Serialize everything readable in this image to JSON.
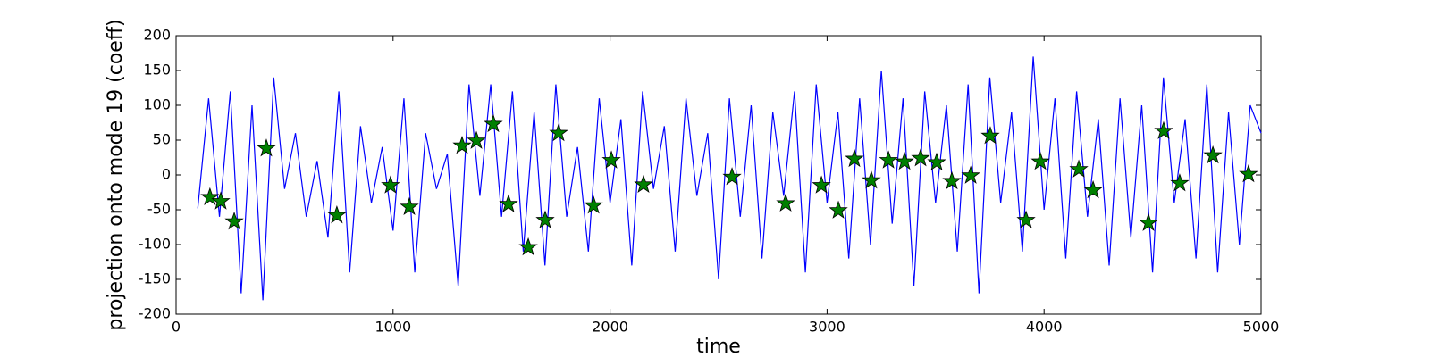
{
  "chart_data": {
    "type": "line",
    "x_label": "time",
    "y_label": "projection onto mode 19 (coeff)",
    "xlim": [
      0,
      5000
    ],
    "xticks": [
      0,
      1000,
      2000,
      3000,
      4000,
      5000
    ],
    "ylim": [
      -200,
      200
    ],
    "yticks": [
      -200,
      -150,
      -100,
      -50,
      0,
      50,
      100,
      150,
      200
    ],
    "series": [
      {
        "color": "#0000ff",
        "x": [
          100,
          150,
          200,
          250,
          300,
          350,
          400,
          450,
          500,
          550,
          600,
          650,
          700,
          750,
          800,
          850,
          900,
          950,
          1000,
          1050,
          1100,
          1150,
          1200,
          1250,
          1300,
          1350,
          1400,
          1450,
          1500,
          1550,
          1600,
          1650,
          1700,
          1750,
          1800,
          1850,
          1900,
          1950,
          2000,
          2050,
          2100,
          2150,
          2200,
          2250,
          2300,
          2350,
          2400,
          2450,
          2500,
          2550,
          2600,
          2650,
          2700,
          2750,
          2800,
          2850,
          2900,
          2950,
          3000,
          3050,
          3100,
          3150,
          3200,
          3250,
          3300,
          3350,
          3400,
          3450,
          3500,
          3550,
          3600,
          3650,
          3700,
          3750,
          3800,
          3850,
          3900,
          3950,
          4000,
          4050,
          4100,
          4150,
          4200,
          4250,
          4300,
          4350,
          4400,
          4450,
          4500,
          4550,
          4600,
          4650,
          4700,
          4750,
          4800,
          4850,
          4900,
          4950,
          5000
        ],
        "values": [
          -48,
          110,
          -60,
          120,
          -170,
          100,
          -180,
          140,
          -20,
          60,
          -60,
          20,
          -90,
          120,
          -140,
          70,
          -40,
          40,
          -80,
          110,
          -140,
          60,
          -20,
          30,
          -160,
          130,
          -30,
          130,
          -60,
          120,
          -110,
          90,
          -130,
          130,
          -60,
          40,
          -110,
          110,
          -40,
          80,
          -130,
          120,
          -20,
          70,
          -110,
          110,
          -30,
          60,
          -150,
          110,
          -60,
          100,
          -120,
          90,
          -30,
          120,
          -140,
          130,
          -40,
          90,
          -120,
          110,
          -100,
          150,
          -70,
          110,
          -160,
          120,
          -40,
          100,
          -110,
          130,
          -170,
          140,
          -40,
          90,
          -110,
          170,
          -50,
          110,
          -120,
          120,
          -60,
          80,
          -130,
          110,
          -90,
          100,
          -140,
          140,
          -40,
          80,
          -120,
          130,
          -140,
          90,
          -100,
          100,
          60
        ]
      },
      {
        "color": "#008000",
        "marker": "star",
        "x": [
          156,
          206,
          268,
          416,
          741,
          988,
          1075,
          1318,
          1384,
          1462,
          1532,
          1623,
          1701,
          1763,
          1924,
          2006,
          2154,
          2562,
          2809,
          2974,
          3052,
          3126,
          3204,
          3283,
          3357,
          3431,
          3505,
          3575,
          3662,
          3752,
          3917,
          3983,
          4160,
          4226,
          4481,
          4551,
          4625,
          4778,
          4942
        ],
        "values": [
          -32,
          -38,
          -67,
          38,
          -58,
          -15,
          -46,
          42,
          49,
          73,
          -42,
          -104,
          -65,
          60,
          -44,
          21,
          -14,
          -3,
          -41,
          -15,
          -51,
          23,
          -8,
          21,
          19,
          24,
          18,
          -9,
          -1,
          56,
          -65,
          19,
          8,
          -22,
          -69,
          63,
          -12,
          28,
          1
        ]
      }
    ]
  }
}
